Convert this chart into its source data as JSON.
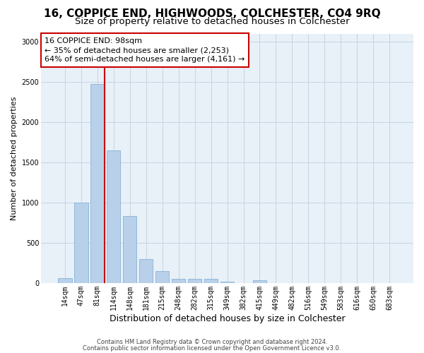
{
  "title": "16, COPPICE END, HIGHWOODS, COLCHESTER, CO4 9RQ",
  "subtitle": "Size of property relative to detached houses in Colchester",
  "xlabel": "Distribution of detached houses by size in Colchester",
  "ylabel": "Number of detached properties",
  "categories": [
    "14sqm",
    "47sqm",
    "81sqm",
    "114sqm",
    "148sqm",
    "181sqm",
    "215sqm",
    "248sqm",
    "282sqm",
    "315sqm",
    "349sqm",
    "382sqm",
    "415sqm",
    "449sqm",
    "482sqm",
    "516sqm",
    "549sqm",
    "583sqm",
    "616sqm",
    "650sqm",
    "683sqm"
  ],
  "values": [
    60,
    1000,
    2470,
    1650,
    830,
    300,
    145,
    55,
    55,
    50,
    20,
    0,
    35,
    0,
    0,
    0,
    0,
    0,
    0,
    0,
    0
  ],
  "bar_color": "#b8d0ea",
  "bar_edge_color": "#7aabcf",
  "grid_color": "#c8d4e4",
  "plot_bg_color": "#e8f0f8",
  "fig_bg_color": "#ffffff",
  "vline_color": "#cc0000",
  "vline_xidx": 2,
  "annotation_line1": "16 COPPICE END: 98sqm",
  "annotation_line2": "← 35% of detached houses are smaller (2,253)",
  "annotation_line3": "64% of semi-detached houses are larger (4,161) →",
  "annotation_box_facecolor": "#ffffff",
  "annotation_box_edgecolor": "#cc0000",
  "footnote1": "Contains HM Land Registry data © Crown copyright and database right 2024.",
  "footnote2": "Contains public sector information licensed under the Open Government Licence v3.0.",
  "ylim": [
    0,
    3100
  ],
  "yticks": [
    0,
    500,
    1000,
    1500,
    2000,
    2500,
    3000
  ],
  "title_fontsize": 11,
  "subtitle_fontsize": 9.5,
  "xlabel_fontsize": 9,
  "ylabel_fontsize": 8,
  "tick_fontsize": 7,
  "annotation_fontsize": 8,
  "footnote_fontsize": 6
}
